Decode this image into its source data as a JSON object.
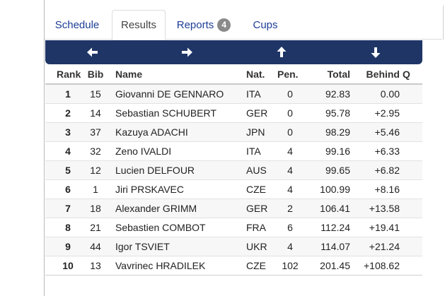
{
  "tabs": {
    "schedule": "Schedule",
    "results": "Results",
    "reports": "Reports",
    "reports_count": "4",
    "cups": "Cups"
  },
  "nav": {
    "icons": [
      "arrow-left-icon",
      "arrow-right-icon",
      "arrow-up-icon",
      "arrow-down-icon"
    ],
    "bar_color": "#1e3566"
  },
  "table": {
    "headers": {
      "rank": "Rank",
      "bib": "Bib",
      "name": "Name",
      "nat": "Nat.",
      "pen": "Pen.",
      "total": "Total",
      "behind": "Behind",
      "q": "Q"
    },
    "rows": [
      {
        "rank": "1",
        "bib": "15",
        "name": "Giovanni DE GENNARO",
        "nat": "ITA",
        "pen": "0",
        "total": "92.83",
        "behind": "0.00"
      },
      {
        "rank": "2",
        "bib": "14",
        "name": "Sebastian SCHUBERT",
        "nat": "GER",
        "pen": "0",
        "total": "95.78",
        "behind": "+2.95"
      },
      {
        "rank": "3",
        "bib": "37",
        "name": "Kazuya ADACHI",
        "nat": "JPN",
        "pen": "0",
        "total": "98.29",
        "behind": "+5.46"
      },
      {
        "rank": "4",
        "bib": "32",
        "name": "Zeno IVALDI",
        "nat": "ITA",
        "pen": "4",
        "total": "99.16",
        "behind": "+6.33"
      },
      {
        "rank": "5",
        "bib": "12",
        "name": "Lucien DELFOUR",
        "nat": "AUS",
        "pen": "4",
        "total": "99.65",
        "behind": "+6.82"
      },
      {
        "rank": "6",
        "bib": "1",
        "name": "Jiri PRSKAVEC",
        "nat": "CZE",
        "pen": "4",
        "total": "100.99",
        "behind": "+8.16"
      },
      {
        "rank": "7",
        "bib": "18",
        "name": "Alexander GRIMM",
        "nat": "GER",
        "pen": "2",
        "total": "106.41",
        "behind": "+13.58"
      },
      {
        "rank": "8",
        "bib": "21",
        "name": "Sebastien COMBOT",
        "nat": "FRA",
        "pen": "6",
        "total": "112.24",
        "behind": "+19.41"
      },
      {
        "rank": "9",
        "bib": "44",
        "name": "Igor TSVIET",
        "nat": "UKR",
        "pen": "4",
        "total": "114.07",
        "behind": "+21.24"
      },
      {
        "rank": "10",
        "bib": "13",
        "name": "Vavrinec HRADILEK",
        "nat": "CZE",
        "pen": "102",
        "total": "201.45",
        "behind": "+108.62"
      }
    ]
  }
}
